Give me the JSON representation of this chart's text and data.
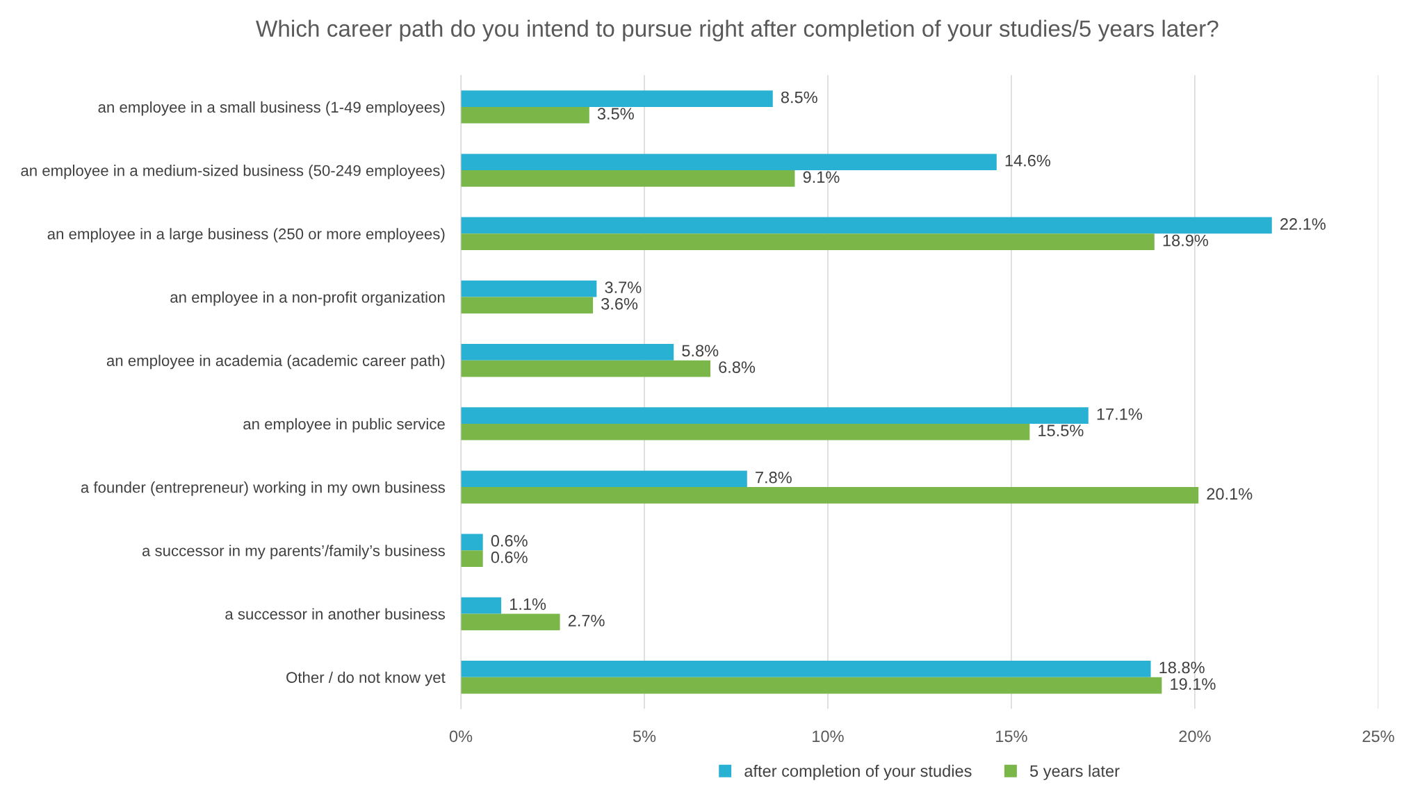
{
  "chart_data": {
    "type": "bar",
    "orientation": "horizontal",
    "title": "Which career path do you intend to pursue right after completion of your studies/5 years later?",
    "categories": [
      "an employee in a small business (1-49 employees)",
      "an employee in a medium-sized business (50-249 employees)",
      "an employee in a large business (250 or more employees)",
      "an employee in a non-profit organization",
      "an employee in academia (academic career path)",
      "an employee in public service",
      "a founder (entrepreneur) working in my own business",
      "a successor in my parents’/family’s business",
      "a successor in another business",
      "Other / do not know yet"
    ],
    "series": [
      {
        "name": "after completion of your studies",
        "color": "#29b1d4",
        "values": [
          8.5,
          14.6,
          22.1,
          3.7,
          5.8,
          17.1,
          7.8,
          0.6,
          1.1,
          18.8
        ],
        "value_labels": [
          "8.5%",
          "14.6%",
          "22.1%",
          "3.7%",
          "5.8%",
          "17.1%",
          "7.8%",
          "0.6%",
          "1.1%",
          "18.8%"
        ]
      },
      {
        "name": "5 years later",
        "color": "#7ab648",
        "values": [
          3.5,
          9.1,
          18.9,
          3.6,
          6.8,
          15.5,
          20.1,
          0.6,
          2.7,
          19.1
        ],
        "value_labels": [
          "3.5%",
          "9.1%",
          "18.9%",
          "3.6%",
          "6.8%",
          "15.5%",
          "20.1%",
          "0.6%",
          "2.7%",
          "19.1%"
        ]
      }
    ],
    "xlim": [
      0,
      25
    ],
    "xticks": [
      {
        "value": 0,
        "label": "0%"
      },
      {
        "value": 5,
        "label": "5%"
      },
      {
        "value": 10,
        "label": "10%"
      },
      {
        "value": 15,
        "label": "15%"
      },
      {
        "value": 20,
        "label": "20%"
      },
      {
        "value": 25,
        "label": "25%"
      }
    ],
    "grid": "x",
    "legend": "bottom"
  }
}
